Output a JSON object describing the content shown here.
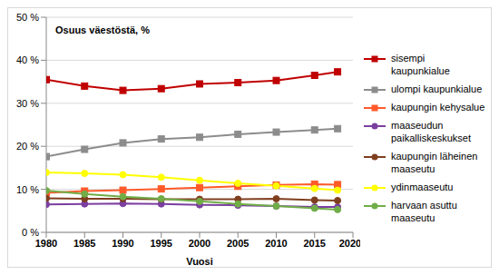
{
  "chart_data": {
    "type": "line",
    "title": "Osuus väestöstä, %",
    "x_label": "Vuosi",
    "x": [
      1980,
      1985,
      1990,
      1995,
      2000,
      2005,
      2010,
      2015,
      2018
    ],
    "xlim": [
      1980,
      2020
    ],
    "xticks": [
      1980,
      1985,
      1990,
      1995,
      2000,
      2005,
      2010,
      2015,
      2020
    ],
    "ylim": [
      0,
      50
    ],
    "yticks": [
      {
        "value": 0,
        "label": "0 %"
      },
      {
        "value": 10,
        "label": "10 %"
      },
      {
        "value": 20,
        "label": "20 %"
      },
      {
        "value": 30,
        "label": "30 %"
      },
      {
        "value": 40,
        "label": "40 %"
      },
      {
        "value": 50,
        "label": "50 %"
      }
    ],
    "grid": true,
    "legend": "right",
    "series": [
      {
        "name": "sisempi kaupunkialue",
        "color": "#c00000",
        "marker": "square",
        "values": [
          35.5,
          34,
          33,
          33.4,
          34.5,
          34.8,
          35.3,
          36.5,
          37.3
        ]
      },
      {
        "name": "ulompi kaupunkialue",
        "color": "#8c8c8c",
        "marker": "square",
        "values": [
          17.6,
          19.3,
          20.8,
          21.7,
          22.1,
          22.8,
          23.3,
          23.8,
          24.1
        ]
      },
      {
        "name": "kaupungin kehysalue",
        "color": "#ff5a2a",
        "marker": "square",
        "values": [
          9.2,
          9.6,
          9.8,
          10.1,
          10.4,
          10.7,
          11.0,
          11.2,
          11.1
        ]
      },
      {
        "name": "maaseudun paikalliskeskukset",
        "color": "#7b3fa0",
        "marker": "circle",
        "values": [
          6.5,
          6.6,
          6.7,
          6.6,
          6.4,
          6.3,
          6.1,
          5.9,
          5.9
        ]
      },
      {
        "name": "kaupungin läheinen maaseutu",
        "color": "#7f3f1f",
        "marker": "circle",
        "values": [
          7.9,
          7.8,
          7.8,
          7.7,
          7.7,
          7.7,
          7.8,
          7.5,
          7.4
        ]
      },
      {
        "name": "ydinmaaseutu",
        "color": "#ffff00",
        "marker": "circle",
        "values": [
          13.9,
          13.7,
          13.4,
          12.8,
          12.1,
          11.4,
          10.8,
          10.2,
          9.8
        ]
      },
      {
        "name": "harvaan asuttu maaseutu",
        "color": "#70ad47",
        "marker": "circle",
        "values": [
          9.7,
          8.9,
          8.3,
          7.8,
          7.2,
          6.6,
          6.1,
          5.6,
          5.3
        ]
      }
    ]
  }
}
